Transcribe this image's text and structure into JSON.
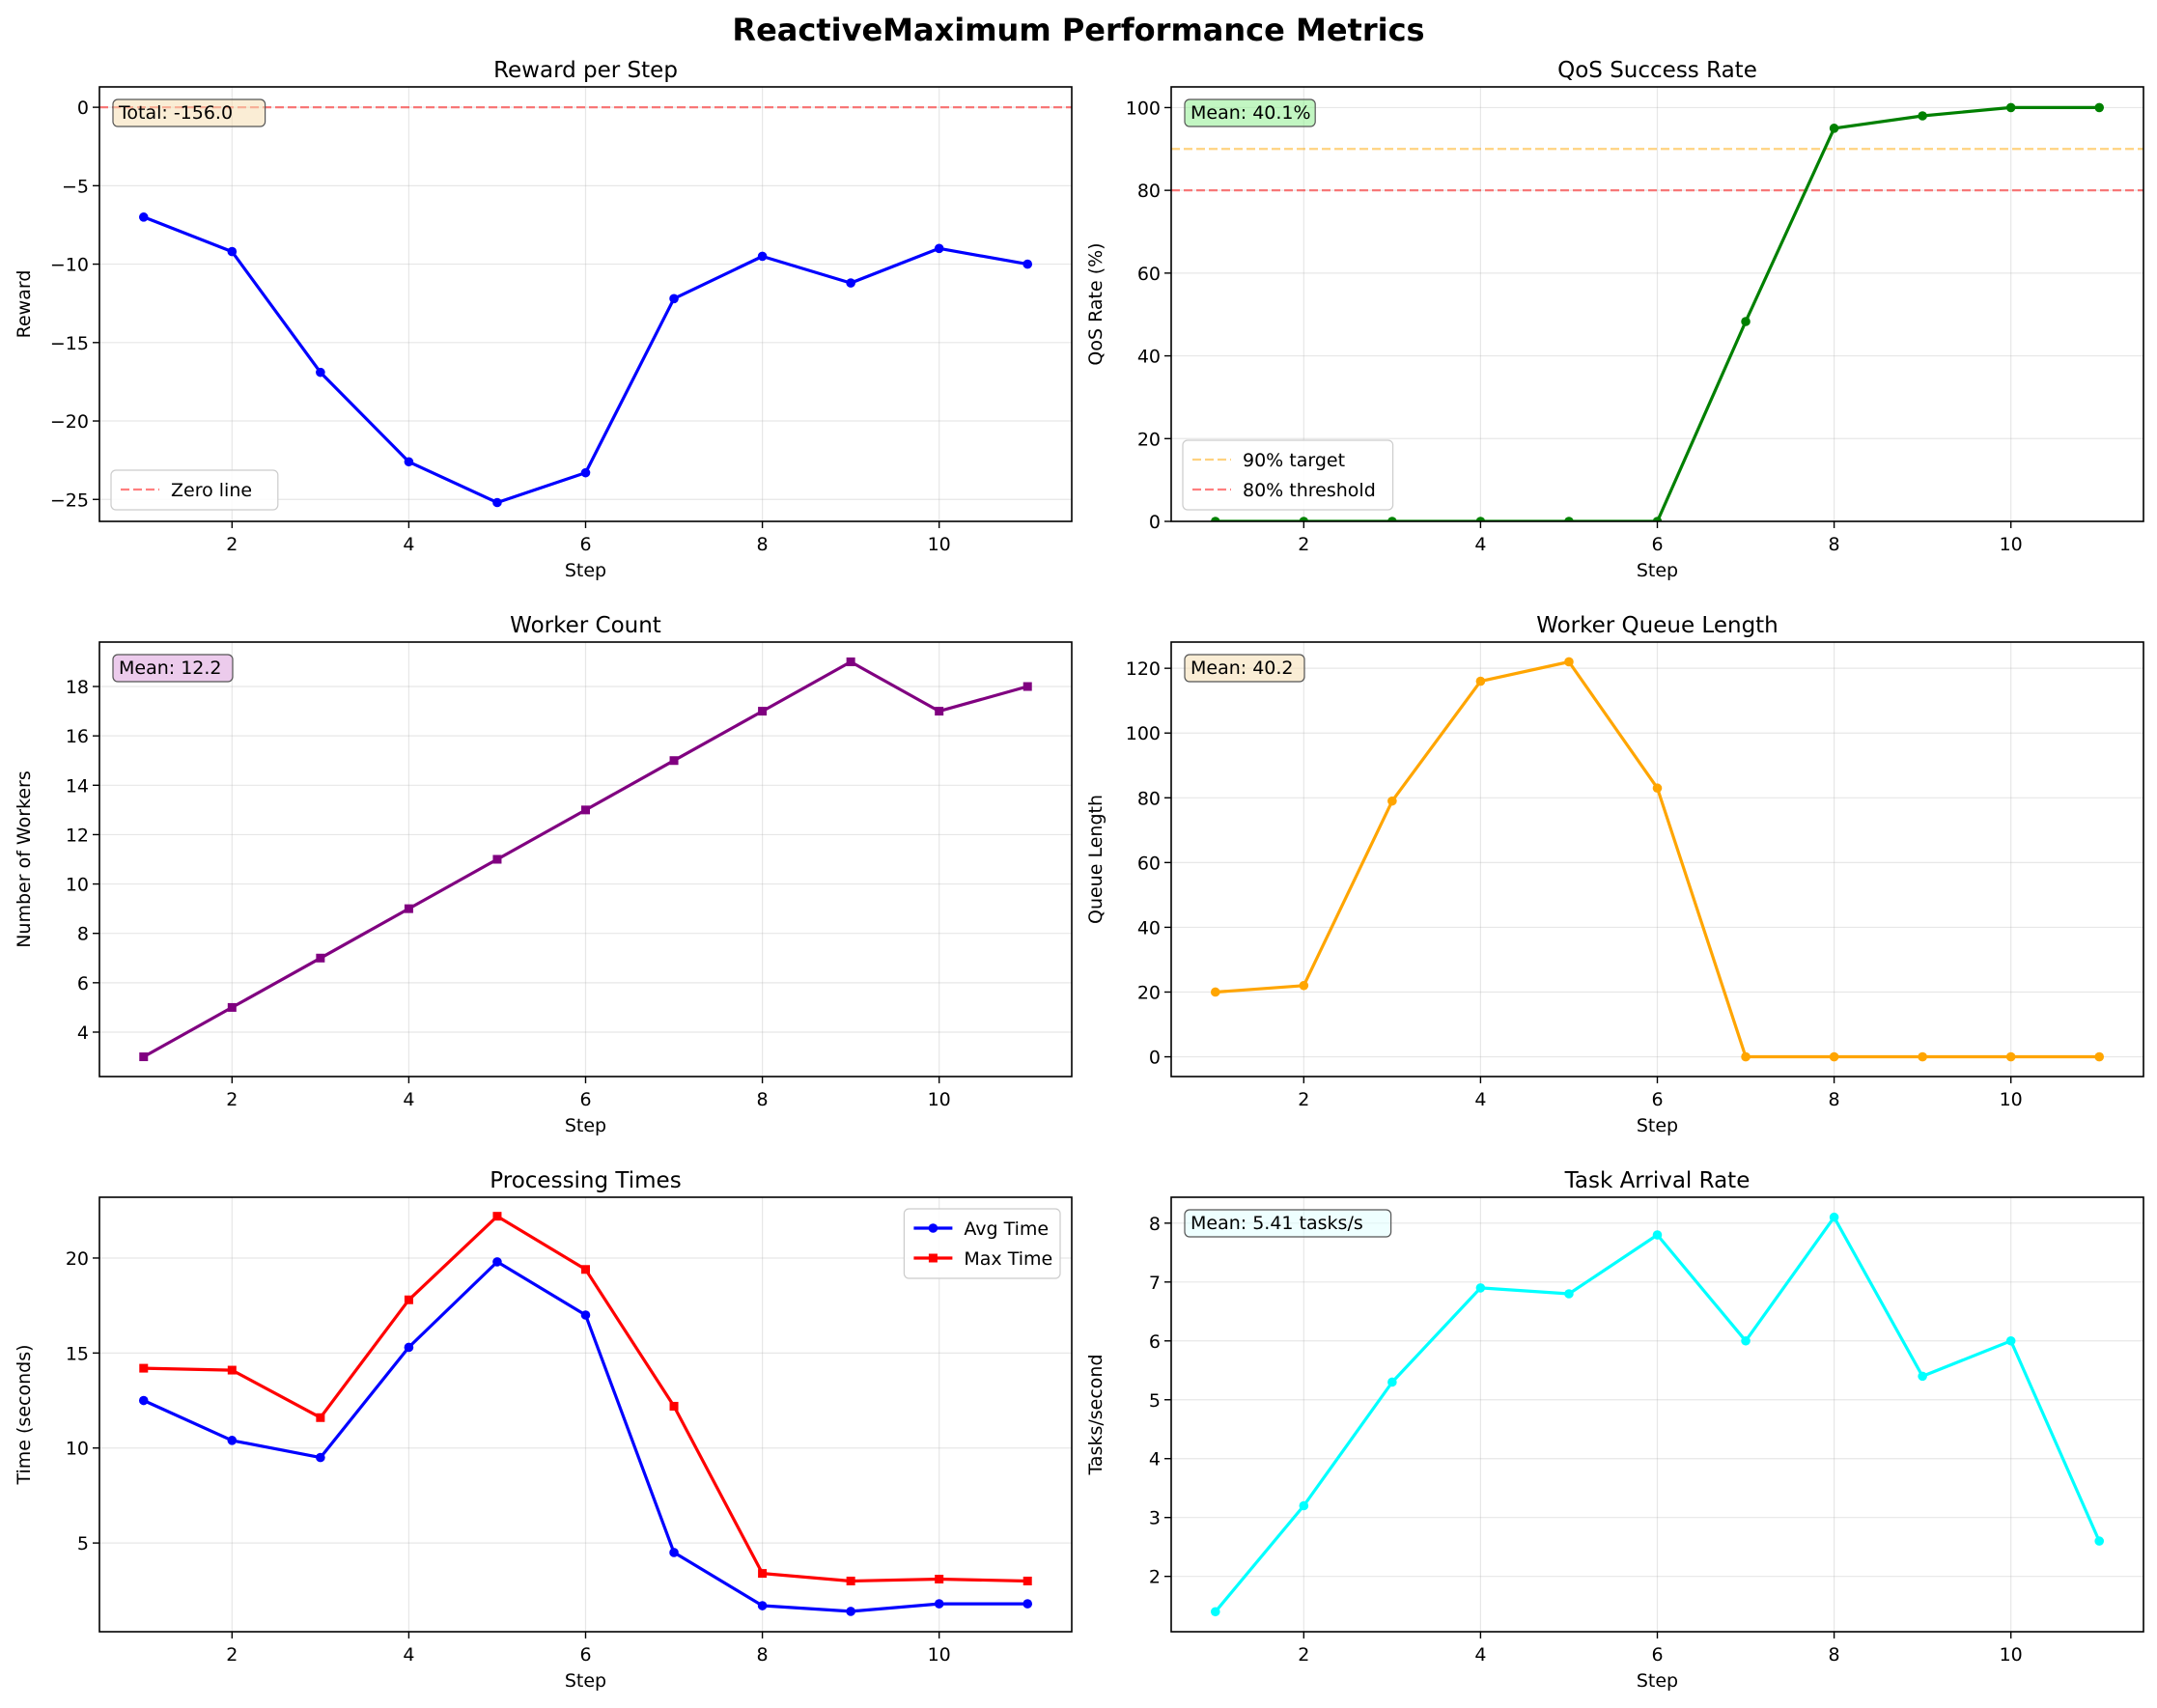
{
  "figure": {
    "title": "ReactiveMaximum Performance Metrics"
  },
  "chart_data": [
    {
      "type": "line",
      "title": "Reward per Step",
      "xlabel": "Step",
      "ylabel": "Reward",
      "xlim": [
        0.5,
        11.5
      ],
      "ylim": [
        -26.4,
        1.3
      ],
      "xticks": [
        2,
        4,
        6,
        8,
        10
      ],
      "yticks": [
        0,
        -5,
        -10,
        -15,
        -20,
        -25
      ],
      "ytick_labels": [
        "0",
        "−5",
        "−10",
        "−15",
        "−20",
        "−25"
      ],
      "grid": true,
      "x": [
        1,
        2,
        3,
        4,
        5,
        6,
        7,
        8,
        9,
        10,
        11
      ],
      "series": [
        {
          "name": "",
          "values": [
            -7.0,
            -9.2,
            -16.9,
            -22.6,
            -25.2,
            -23.3,
            -12.2,
            -9.5,
            -11.2,
            -9.0,
            -10.0
          ],
          "color": "#0000ff",
          "marker": "circle",
          "legend": false
        }
      ],
      "reference_lines": [
        {
          "label": "Zero line",
          "y": 0,
          "color": "#ff0000",
          "alpha": 0.5
        }
      ],
      "legend": {
        "position": "lower-left"
      },
      "annotation": {
        "text": "Total: -156.0",
        "box_color": "#f5deb3"
      }
    },
    {
      "type": "line",
      "title": "QoS Success Rate",
      "xlabel": "Step",
      "ylabel": "QoS Rate (%)",
      "xlim": [
        0.5,
        11.5
      ],
      "ylim": [
        0,
        105
      ],
      "xticks": [
        2,
        4,
        6,
        8,
        10
      ],
      "yticks": [
        0,
        20,
        40,
        60,
        80,
        100
      ],
      "ytick_labels": [
        "0",
        "20",
        "40",
        "60",
        "80",
        "100"
      ],
      "grid": true,
      "x": [
        1,
        2,
        3,
        4,
        5,
        6,
        7,
        8,
        9,
        10,
        11
      ],
      "series": [
        {
          "name": "",
          "values": [
            0,
            0,
            0,
            0,
            0,
            0,
            48.3,
            95.0,
            98.0,
            100,
            100
          ],
          "color": "#008000",
          "marker": "circle",
          "legend": false
        }
      ],
      "reference_lines": [
        {
          "label": "90% target",
          "y": 90,
          "color": "#ffa500",
          "alpha": 0.5
        },
        {
          "label": "80% threshold",
          "y": 80,
          "color": "#ff0000",
          "alpha": 0.5
        }
      ],
      "legend": {
        "position": "lower-left"
      },
      "annotation": {
        "text": "Mean: 40.1%",
        "box_color": "#90ee90"
      }
    },
    {
      "type": "line",
      "title": "Worker Count",
      "xlabel": "Step",
      "ylabel": "Number of Workers",
      "xlim": [
        0.5,
        11.5
      ],
      "ylim": [
        2.2,
        19.8
      ],
      "xticks": [
        2,
        4,
        6,
        8,
        10
      ],
      "yticks": [
        4,
        6,
        8,
        10,
        12,
        14,
        16,
        18
      ],
      "ytick_labels": [
        "4",
        "6",
        "8",
        "10",
        "12",
        "14",
        "16",
        "18"
      ],
      "grid": true,
      "x": [
        1,
        2,
        3,
        4,
        5,
        6,
        7,
        8,
        9,
        10,
        11
      ],
      "series": [
        {
          "name": "",
          "values": [
            3,
            5,
            7,
            9,
            11,
            13,
            15,
            17,
            19,
            17,
            18
          ],
          "color": "#800080",
          "marker": "square",
          "legend": false
        }
      ],
      "reference_lines": [],
      "legend": null,
      "annotation": {
        "text": "Mean: 12.2",
        "box_color": "#dda0dd"
      }
    },
    {
      "type": "line",
      "title": "Worker Queue Length",
      "xlabel": "Step",
      "ylabel": "Queue Length",
      "xlim": [
        0.5,
        11.5
      ],
      "ylim": [
        -6.1,
        128.1
      ],
      "xticks": [
        2,
        4,
        6,
        8,
        10
      ],
      "yticks": [
        0,
        20,
        40,
        60,
        80,
        100,
        120
      ],
      "ytick_labels": [
        "0",
        "20",
        "40",
        "60",
        "80",
        "100",
        "120"
      ],
      "grid": true,
      "x": [
        1,
        2,
        3,
        4,
        5,
        6,
        7,
        8,
        9,
        10,
        11
      ],
      "series": [
        {
          "name": "",
          "values": [
            20,
            22,
            79,
            116,
            122,
            83,
            0,
            0,
            0,
            0,
            0
          ],
          "color": "#ffa500",
          "marker": "circle",
          "legend": false
        }
      ],
      "reference_lines": [],
      "legend": null,
      "annotation": {
        "text": "Mean: 40.2",
        "box_color": "#f5deb3"
      }
    },
    {
      "type": "line",
      "title": "Processing Times",
      "xlabel": "Step",
      "ylabel": "Time (seconds)",
      "xlim": [
        0.5,
        11.5
      ],
      "ylim": [
        0.33,
        23.2
      ],
      "xticks": [
        2,
        4,
        6,
        8,
        10
      ],
      "yticks": [
        5,
        10,
        15,
        20
      ],
      "ytick_labels": [
        "5",
        "10",
        "15",
        "20"
      ],
      "grid": true,
      "x": [
        1,
        2,
        3,
        4,
        5,
        6,
        7,
        8,
        9,
        10,
        11
      ],
      "series": [
        {
          "name": "Avg Time",
          "values": [
            12.5,
            10.4,
            9.5,
            15.3,
            19.8,
            17.0,
            4.5,
            1.7,
            1.4,
            1.8,
            1.8
          ],
          "color": "#0000ff",
          "marker": "circle",
          "legend": true
        },
        {
          "name": "Max Time",
          "values": [
            14.2,
            14.1,
            11.6,
            17.8,
            22.2,
            19.4,
            12.2,
            3.4,
            3.0,
            3.1,
            3.0
          ],
          "color": "#ff0000",
          "marker": "square",
          "legend": true
        }
      ],
      "reference_lines": [],
      "legend": {
        "position": "upper-right"
      },
      "annotation": null
    },
    {
      "type": "line",
      "title": "Task Arrival Rate",
      "xlabel": "Step",
      "ylabel": "Tasks/second",
      "xlim": [
        0.5,
        11.5
      ],
      "ylim": [
        1.06,
        8.44
      ],
      "xticks": [
        2,
        4,
        6,
        8,
        10
      ],
      "yticks": [
        2,
        3,
        4,
        5,
        6,
        7,
        8
      ],
      "ytick_labels": [
        "2",
        "3",
        "4",
        "5",
        "6",
        "7",
        "8"
      ],
      "grid": true,
      "x": [
        1,
        2,
        3,
        4,
        5,
        6,
        7,
        8,
        9,
        10,
        11
      ],
      "series": [
        {
          "name": "",
          "values": [
            1.4,
            3.2,
            5.3,
            6.9,
            6.8,
            7.8,
            6.0,
            8.1,
            5.4,
            6.0,
            2.6
          ],
          "color": "#00ffff",
          "marker": "circle",
          "legend": false
        }
      ],
      "reference_lines": [],
      "legend": null,
      "annotation": {
        "text": "Mean: 5.41 tasks/s",
        "box_color": "#e0ffff"
      }
    }
  ]
}
